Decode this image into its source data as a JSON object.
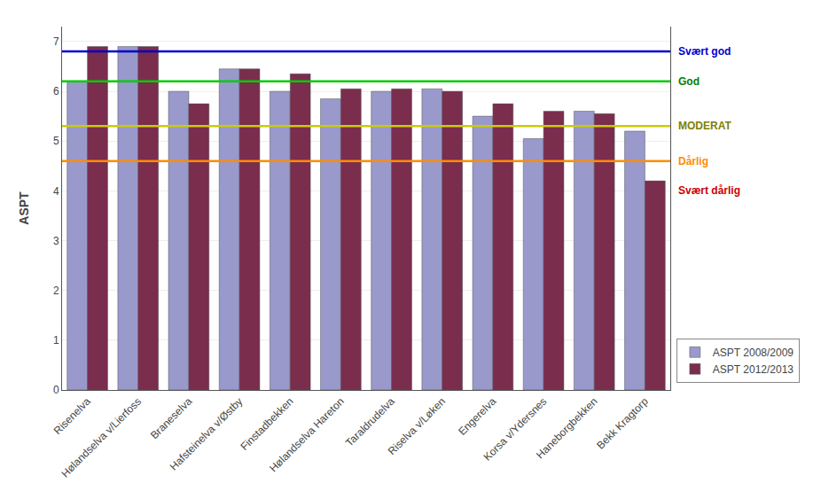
{
  "chart_data": {
    "type": "bar",
    "categories": [
      "Risenelva",
      "Hølandselva v/Lierfoss",
      "Braneselva",
      "Hafsteinelva v/Østby",
      "Finstadbekken",
      "Hølandselva Hareton",
      "Taraldrudelva",
      "Riselva v/Løken",
      "Engerelva",
      "Korsa v/Ydersnes",
      "Haneborgbekken",
      "Bekk Kragtorp"
    ],
    "series": [
      {
        "name": "ASPT 2008/2009",
        "color": "#9999CC",
        "values": [
          6.2,
          6.9,
          6.0,
          6.45,
          6.0,
          5.85,
          6.0,
          6.05,
          5.5,
          5.05,
          5.6,
          5.2
        ]
      },
      {
        "name": "ASPT 2012/2013",
        "color": "#7B2D4E",
        "values": [
          6.9,
          6.9,
          5.75,
          6.45,
          6.35,
          6.05,
          6.05,
          6.0,
          5.75,
          5.6,
          5.55,
          4.2
        ]
      }
    ],
    "ylabel": "ASPT",
    "ylim": [
      0,
      7.3
    ],
    "yticks": [
      0,
      1,
      2,
      3,
      4,
      5,
      6,
      7
    ],
    "grid": true,
    "legend": "lower right",
    "reference_lines": [
      {
        "value": 6.8,
        "label": "Svært god",
        "color": "#0000CC",
        "label_color": "#0000CC"
      },
      {
        "value": 6.2,
        "label": "God",
        "color": "#00CC00",
        "label_color": "#008000"
      },
      {
        "value": 5.3,
        "label": "MODERAT",
        "color": "#CCCC00",
        "label_color": "#808000"
      },
      {
        "value": 4.6,
        "label": "Dårlig",
        "color": "#FF8C00",
        "label_color": "#FF8C00"
      },
      {
        "value": 4.0,
        "label": "Svært dårlig",
        "label_color": "#CC0000"
      }
    ]
  }
}
